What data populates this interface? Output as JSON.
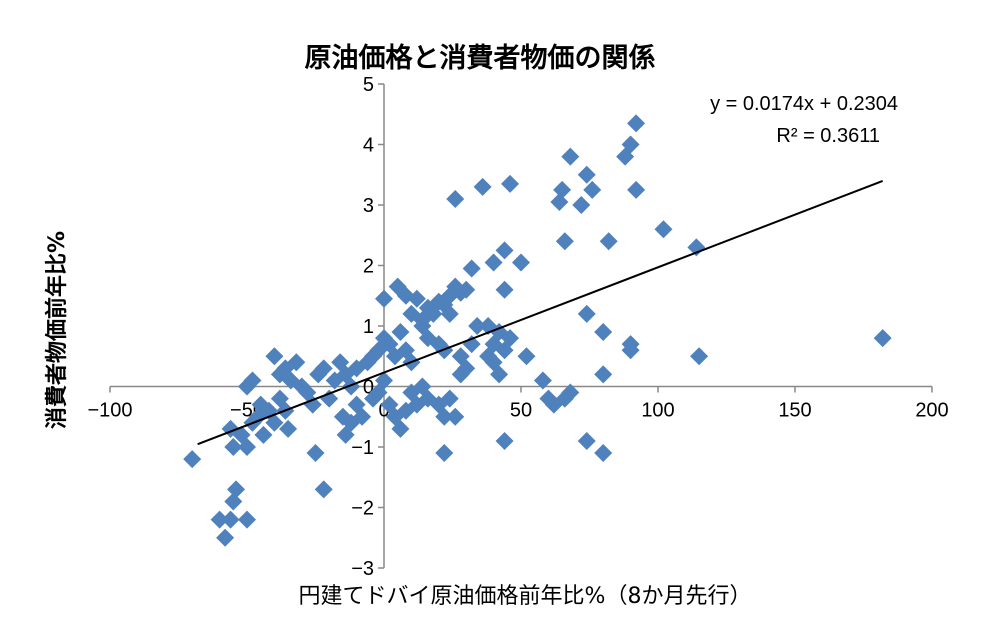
{
  "chart_data": {
    "type": "scatter",
    "title": "原油価格と消費者物価の関係",
    "xlabel": "円建てドバイ原油価格前年比%（8か月先行）",
    "ylabel": "消費者物価前年比%",
    "xlim": [
      -100,
      200
    ],
    "ylim": [
      -3,
      5
    ],
    "x_ticks": [
      -100,
      -50,
      0,
      50,
      100,
      150,
      200
    ],
    "y_ticks": [
      -3,
      -2,
      -1,
      0,
      1,
      2,
      3,
      4,
      5
    ],
    "grid": false,
    "legend": "none",
    "marker": "diamond",
    "color": "#4F81BD",
    "trendline": {
      "slope": 0.0174,
      "intercept": 0.2304,
      "x_range": [
        -68,
        182
      ],
      "equation": "y = 0.0174x + 0.2304",
      "r_squared": "R² = 0.3611"
    },
    "points": [
      [
        -70,
        -1.2
      ],
      [
        -60,
        -2.2
      ],
      [
        -58,
        -2.5
      ],
      [
        -56,
        -2.2
      ],
      [
        -55,
        -1.9
      ],
      [
        -54,
        -1.7
      ],
      [
        -50,
        -2.2
      ],
      [
        -56,
        -0.7
      ],
      [
        -55,
        -1.0
      ],
      [
        -52,
        -0.8
      ],
      [
        -50,
        -1.0
      ],
      [
        -48,
        -0.6
      ],
      [
        -46,
        -0.5
      ],
      [
        -44,
        -0.8
      ],
      [
        -50,
        0.0
      ],
      [
        -48,
        0.1
      ],
      [
        -45,
        -0.3
      ],
      [
        -42,
        -0.4
      ],
      [
        -40,
        -0.6
      ],
      [
        -38,
        -0.2
      ],
      [
        -36,
        -0.4
      ],
      [
        -35,
        -0.7
      ],
      [
        -40,
        0.5
      ],
      [
        -38,
        0.2
      ],
      [
        -36,
        0.3
      ],
      [
        -34,
        0.1
      ],
      [
        -32,
        0.4
      ],
      [
        -30,
        0.0
      ],
      [
        -28,
        -0.1
      ],
      [
        -26,
        -0.3
      ],
      [
        -24,
        0.2
      ],
      [
        -22,
        0.3
      ],
      [
        -20,
        -0.2
      ],
      [
        -18,
        0.1
      ],
      [
        -16,
        0.4
      ],
      [
        -14,
        0.2
      ],
      [
        -12,
        0.0
      ],
      [
        -10,
        0.3
      ],
      [
        -25,
        -1.1
      ],
      [
        -22,
        -1.7
      ],
      [
        -15,
        -0.5
      ],
      [
        -14,
        -0.8
      ],
      [
        -12,
        -0.6
      ],
      [
        -10,
        -0.3
      ],
      [
        -8,
        -0.5
      ],
      [
        -6,
        0.4
      ],
      [
        -4,
        0.5
      ],
      [
        -2,
        0.6
      ],
      [
        0,
        0.8
      ],
      [
        2,
        0.7
      ],
      [
        4,
        0.5
      ],
      [
        6,
        0.9
      ],
      [
        8,
        0.6
      ],
      [
        10,
        0.4
      ],
      [
        -4,
        -0.2
      ],
      [
        -2,
        -0.1
      ],
      [
        0,
        0.1
      ],
      [
        2,
        -0.3
      ],
      [
        4,
        -0.5
      ],
      [
        6,
        -0.7
      ],
      [
        8,
        -0.4
      ],
      [
        10,
        -0.1
      ],
      [
        12,
        -0.3
      ],
      [
        14,
        0.0
      ],
      [
        16,
        -0.2
      ],
      [
        0,
        1.45
      ],
      [
        5,
        1.65
      ],
      [
        8,
        1.5
      ],
      [
        10,
        1.2
      ],
      [
        12,
        1.45
      ],
      [
        14,
        1.1
      ],
      [
        16,
        1.3
      ],
      [
        18,
        1.2
      ],
      [
        20,
        1.4
      ],
      [
        22,
        1.35
      ],
      [
        24,
        1.5
      ],
      [
        26,
        1.65
      ],
      [
        28,
        1.55
      ],
      [
        30,
        1.6
      ],
      [
        14,
        1.0
      ],
      [
        16,
        0.8
      ],
      [
        20,
        0.7
      ],
      [
        22,
        0.6
      ],
      [
        24,
        1.2
      ],
      [
        20,
        -0.3
      ],
      [
        22,
        -0.5
      ],
      [
        24,
        -0.2
      ],
      [
        26,
        -0.5
      ],
      [
        22,
        -1.1
      ],
      [
        28,
        0.2
      ],
      [
        30,
        0.3
      ],
      [
        28,
        0.5
      ],
      [
        32,
        0.7
      ],
      [
        34,
        1.0
      ],
      [
        26,
        3.1
      ],
      [
        36,
        3.3
      ],
      [
        46,
        3.35
      ],
      [
        32,
        1.95
      ],
      [
        40,
        2.05
      ],
      [
        44,
        2.25
      ],
      [
        50,
        2.05
      ],
      [
        44,
        1.6
      ],
      [
        38,
        1.0
      ],
      [
        40,
        0.7
      ],
      [
        42,
        0.9
      ],
      [
        44,
        0.6
      ],
      [
        46,
        0.8
      ],
      [
        38,
        0.5
      ],
      [
        40,
        0.4
      ],
      [
        42,
        0.2
      ],
      [
        44,
        -0.9
      ],
      [
        52,
        0.5
      ],
      [
        58,
        0.1
      ],
      [
        60,
        -0.2
      ],
      [
        62,
        -0.3
      ],
      [
        66,
        -0.2
      ],
      [
        68,
        -0.1
      ],
      [
        74,
        -0.9
      ],
      [
        80,
        -1.1
      ],
      [
        64,
        3.05
      ],
      [
        65,
        3.25
      ],
      [
        66,
        2.4
      ],
      [
        68,
        3.8
      ],
      [
        72,
        3.0
      ],
      [
        74,
        3.5
      ],
      [
        76,
        3.25
      ],
      [
        74,
        1.2
      ],
      [
        80,
        0.9
      ],
      [
        80,
        0.2
      ],
      [
        82,
        2.4
      ],
      [
        88,
        3.8
      ],
      [
        90,
        4.0
      ],
      [
        92,
        4.35
      ],
      [
        92,
        3.25
      ],
      [
        90,
        0.7
      ],
      [
        90,
        0.6
      ],
      [
        102,
        2.6
      ],
      [
        114,
        2.3
      ],
      [
        115,
        0.5
      ],
      [
        182,
        0.8
      ]
    ]
  }
}
